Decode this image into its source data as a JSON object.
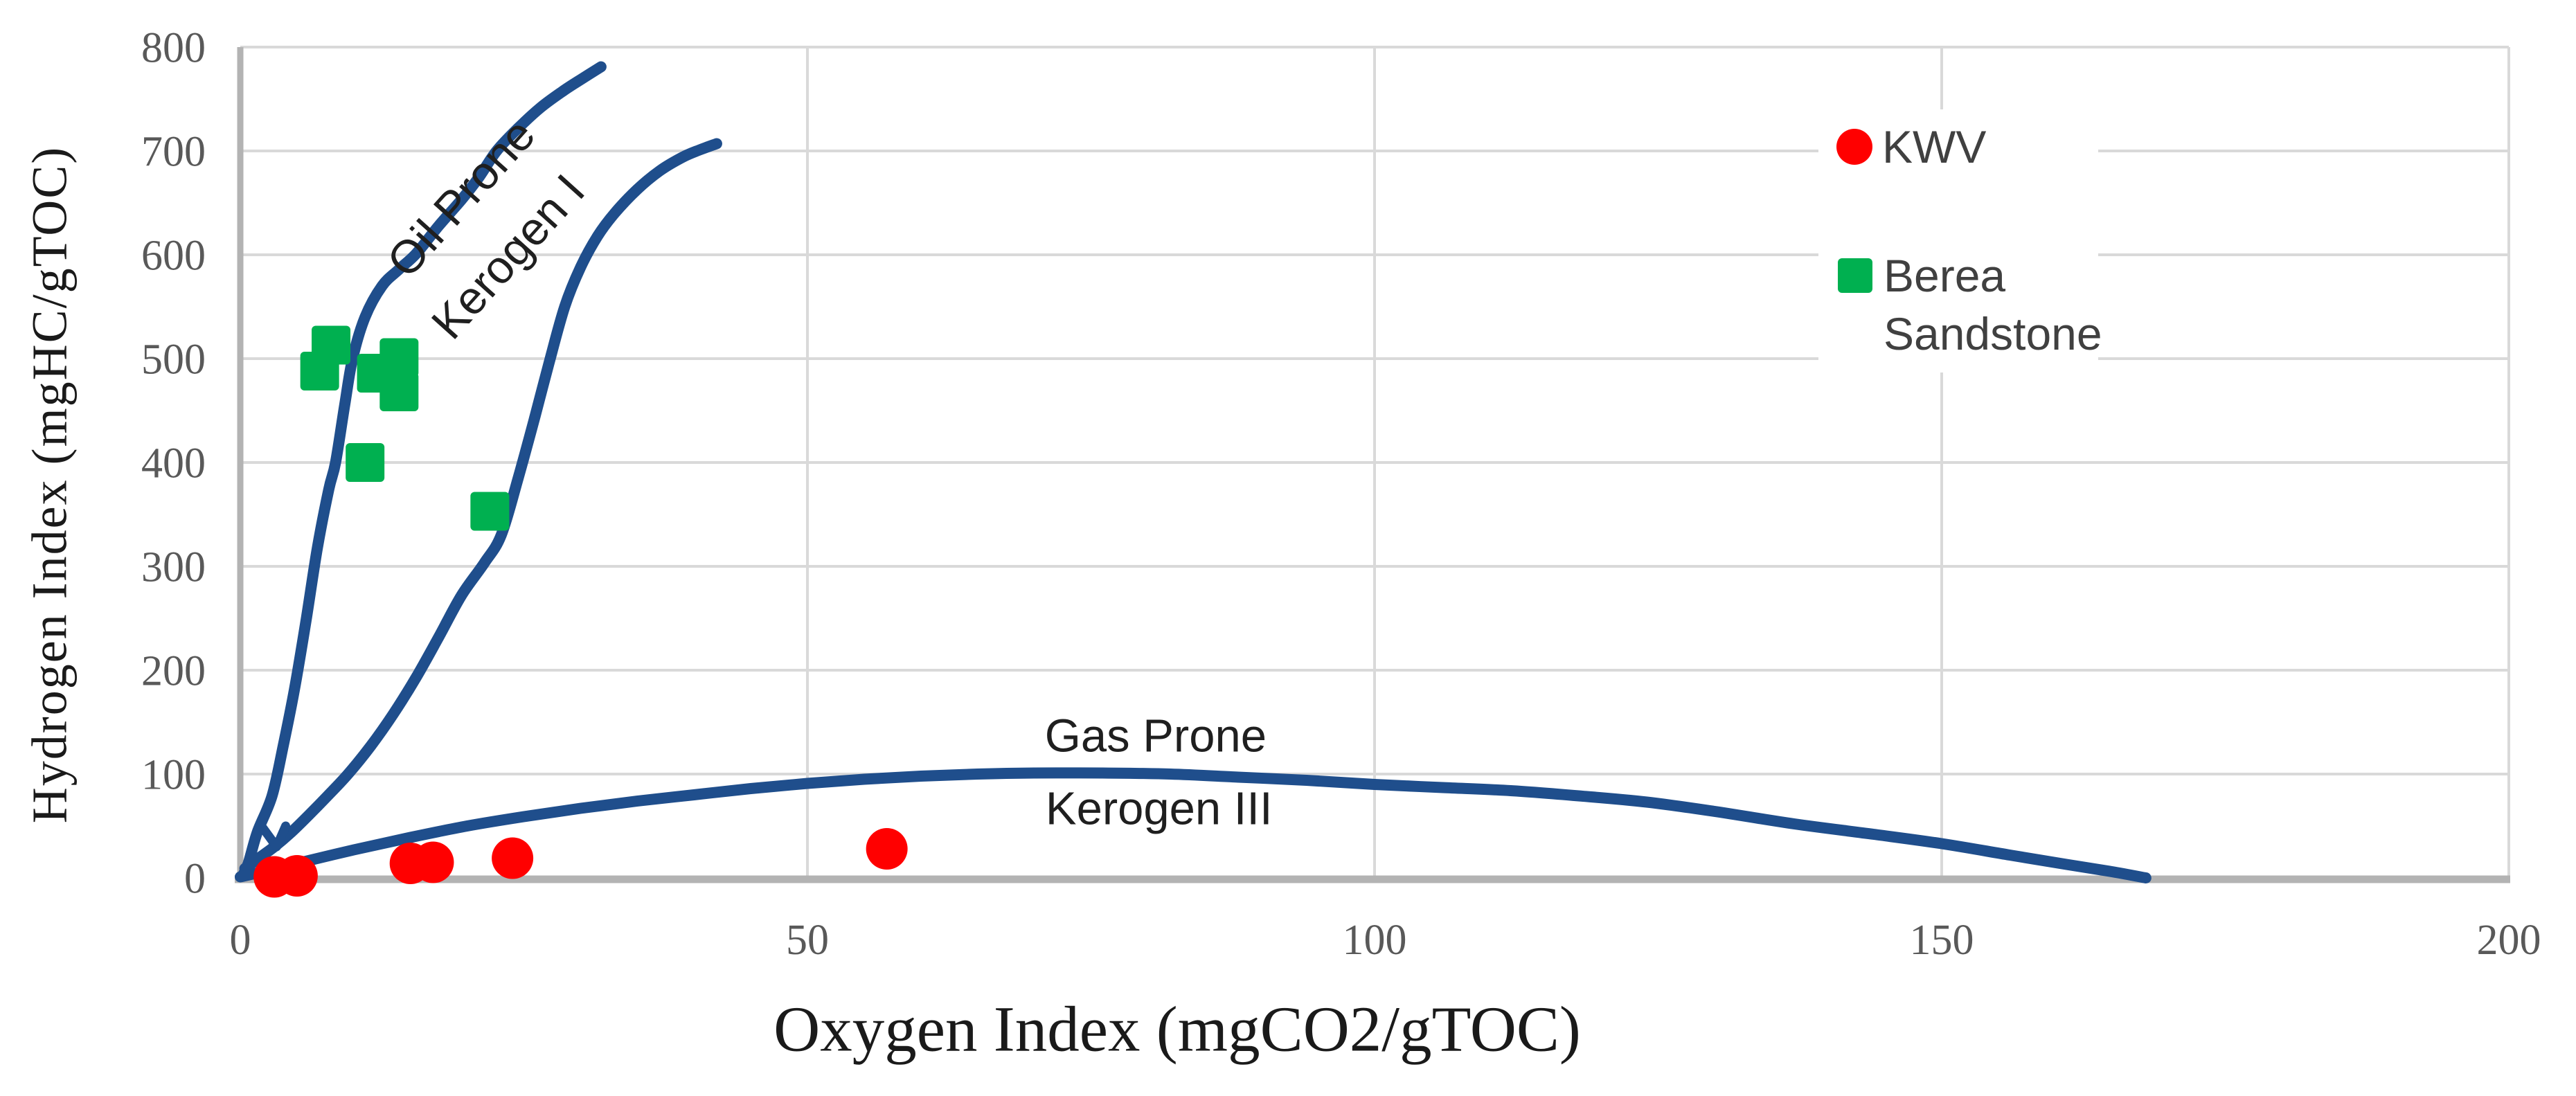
{
  "chart_data": {
    "type": "scatter",
    "title": "",
    "xlabel": "Oxygen Index (mgCO2/gTOC)",
    "ylabel": "Hydrogen Index (mgHC/gTOC)",
    "xlim": [
      0,
      200
    ],
    "ylim": [
      0,
      800
    ],
    "x_ticks": [
      0,
      50,
      100,
      150,
      200
    ],
    "y_ticks": [
      0,
      100,
      200,
      300,
      400,
      500,
      600,
      700,
      800
    ],
    "grid": true,
    "legend": {
      "position": "inside-top-right",
      "items": [
        "KWV",
        "Berea Sandstone"
      ]
    },
    "series": [
      {
        "name": "KWV",
        "marker": "circle",
        "color": "#FF0000",
        "points": [
          [
            3,
            1
          ],
          [
            5,
            2
          ],
          [
            15,
            14
          ],
          [
            17,
            15
          ],
          [
            24,
            19
          ],
          [
            57,
            28
          ]
        ]
      },
      {
        "name": "Berea Sandstone",
        "marker": "square",
        "color": "#00B050",
        "points": [
          [
            7,
            488
          ],
          [
            8,
            513
          ],
          [
            12,
            486
          ],
          [
            14,
            501
          ],
          [
            14,
            468
          ],
          [
            11,
            400
          ],
          [
            22,
            353
          ]
        ]
      }
    ],
    "curves": [
      {
        "id": "kerogen-i-boundary",
        "color": "#1F4E8C",
        "width": 16,
        "smooth": true,
        "points": [
          [
            0.2,
            2
          ],
          [
            0.7,
            14
          ],
          [
            1.5,
            44
          ],
          [
            2.8,
            79
          ],
          [
            3.8,
            128
          ],
          [
            4.8,
            183
          ],
          [
            5.8,
            248
          ],
          [
            6.8,
            318
          ],
          [
            7.8,
            374
          ],
          [
            8.4,
            400
          ],
          [
            9.2,
            455
          ],
          [
            9.9,
            500
          ],
          [
            11,
            540
          ],
          [
            12.5,
            570
          ],
          [
            14,
            586
          ],
          [
            15.5,
            601
          ],
          [
            17.5,
            628
          ],
          [
            19.5,
            653
          ],
          [
            21,
            674
          ],
          [
            22.6,
            700
          ],
          [
            24.5,
            722
          ],
          [
            26.5,
            742
          ],
          [
            28.5,
            758
          ],
          [
            30.2,
            770
          ],
          [
            31.8,
            781
          ]
        ]
      },
      {
        "id": "kerogen-ii-boundary",
        "color": "#1F4E8C",
        "width": 16,
        "smooth": true,
        "points": [
          [
            0.4,
            9
          ],
          [
            1.5,
            18
          ],
          [
            3,
            30
          ],
          [
            4.5,
            44
          ],
          [
            6,
            60
          ],
          [
            7.7,
            79
          ],
          [
            9.5,
            100
          ],
          [
            11.5,
            127
          ],
          [
            13.5,
            158
          ],
          [
            15.5,
            193
          ],
          [
            17.5,
            232
          ],
          [
            19.5,
            272
          ],
          [
            21.5,
            303
          ],
          [
            23,
            330
          ],
          [
            24.5,
            385
          ],
          [
            26,
            445
          ],
          [
            27.2,
            495
          ],
          [
            28.6,
            550
          ],
          [
            30,
            588
          ],
          [
            31.5,
            618
          ],
          [
            33,
            640
          ],
          [
            35,
            663
          ],
          [
            37,
            681
          ],
          [
            39,
            694
          ],
          [
            40.5,
            701
          ],
          [
            42,
            707
          ]
        ]
      },
      {
        "id": "kerogen-ii-arrowhead",
        "color": "#1F4E8C",
        "width": 13,
        "smooth": false,
        "points": [
          [
            2,
            48
          ],
          [
            3.2,
            30
          ],
          [
            4,
            50
          ]
        ]
      },
      {
        "id": "kerogen-iii-boundary",
        "color": "#1F4E8C",
        "width": 16,
        "smooth": true,
        "points": [
          [
            0,
            1
          ],
          [
            2,
            6
          ],
          [
            5,
            14
          ],
          [
            10,
            27
          ],
          [
            15,
            39
          ],
          [
            20,
            50
          ],
          [
            25,
            59
          ],
          [
            30,
            67
          ],
          [
            35,
            74
          ],
          [
            40,
            80
          ],
          [
            45,
            86
          ],
          [
            50,
            91
          ],
          [
            55,
            95
          ],
          [
            60,
            98
          ],
          [
            65,
            100
          ],
          [
            70,
            101
          ],
          [
            76,
            101
          ],
          [
            82,
            100
          ],
          [
            88,
            97
          ],
          [
            94,
            94
          ],
          [
            100,
            90
          ],
          [
            106,
            87
          ],
          [
            112,
            84
          ],
          [
            118,
            79
          ],
          [
            124,
            73
          ],
          [
            130,
            64
          ],
          [
            137,
            52
          ],
          [
            144,
            42
          ],
          [
            150,
            33
          ],
          [
            156,
            22
          ],
          [
            161,
            13
          ],
          [
            165,
            6
          ],
          [
            168,
            0
          ]
        ]
      }
    ],
    "annotations": [
      {
        "text": "Oil Prone",
        "x": 19.5,
        "y": 655,
        "rotate": -48
      },
      {
        "text": "Kerogen I",
        "x": 23.6,
        "y": 598,
        "rotate": -48
      },
      {
        "text": "Gas Prone",
        "x": 80.7,
        "y": 137,
        "rotate": 0
      },
      {
        "text": "Kerogen III",
        "x": 81.0,
        "y": 67,
        "rotate": 0
      }
    ],
    "colors": {
      "curve": "#1F4E8C",
      "grid": "#D9D9D9",
      "axis": "#B3B3B3",
      "tick_text": "#595959",
      "title_text": "#1A1A1A",
      "annotation_text": "#1F1F1F",
      "legend_text": "#404040"
    }
  }
}
